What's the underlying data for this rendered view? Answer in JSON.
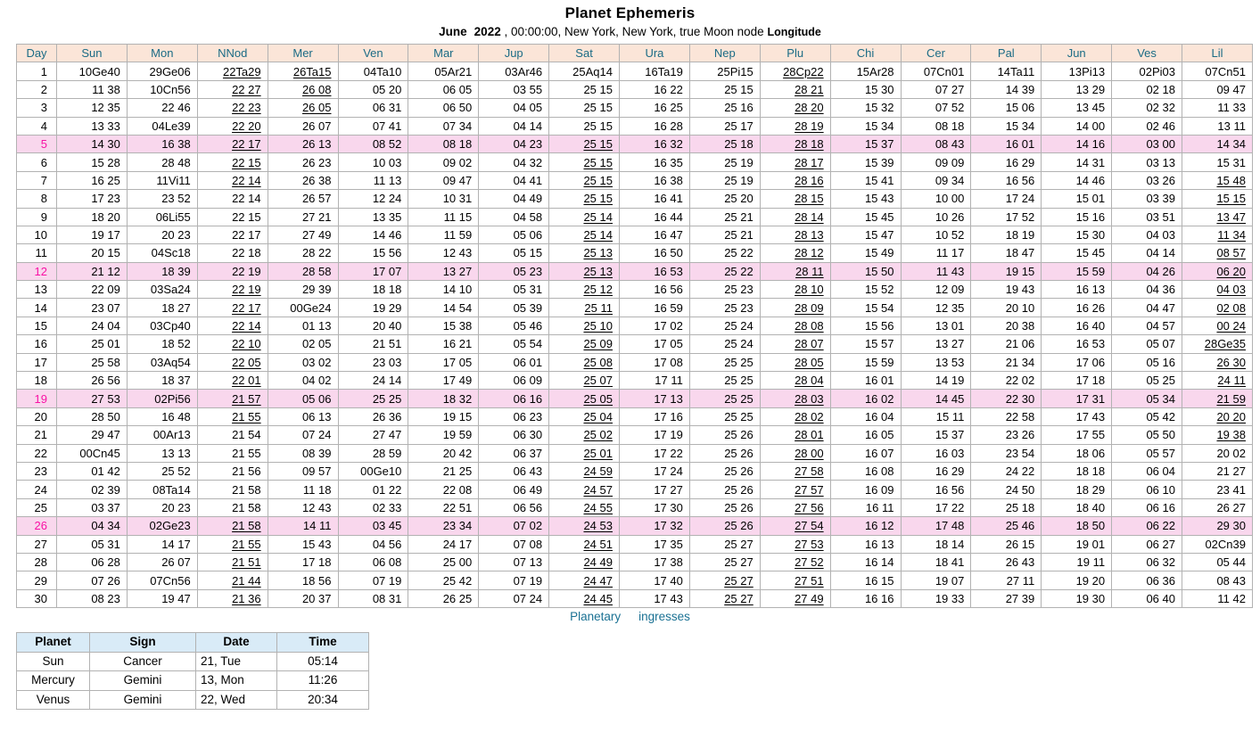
{
  "title": "Planet Ephemeris",
  "subtitle": {
    "month": "June",
    "year": "2022",
    "details": ", 00:00:00, New York, New York, true Moon node",
    "coordinate_type": "Longitude"
  },
  "colors": {
    "header_bg": "#fbe5d8",
    "header_text": "#1b6b85",
    "highlight_row_bg": "#f9d7ed",
    "highlight_day_text": "#f911a5",
    "grid_line": "#b2b2b2",
    "caption_text": "#1a7193",
    "ingresses_header_bg": "#d9ebf7"
  },
  "table": {
    "columns": [
      "Day",
      "Sun",
      "Mon",
      "NNod",
      "Mer",
      "Ven",
      "Mar",
      "Jup",
      "Sat",
      "Ura",
      "Nep",
      "Plu",
      "Chi",
      "Cer",
      "Pal",
      "Jun",
      "Ves",
      "Lil"
    ],
    "highlighted_days": [
      5,
      12,
      19,
      26
    ],
    "rows": [
      {
        "day": "1",
        "cells": [
          "10Ge40",
          "29Ge06",
          "22Ta29",
          "26Ta15",
          "04Ta10",
          "05Ar21",
          "03Ar46",
          "25Aq14",
          "16Ta19",
          "25Pi15",
          "28Cp22",
          "15Ar28",
          "07Cn01",
          "14Ta11",
          "13Pi13",
          "02Pi03",
          "07Cn51"
        ],
        "u": [
          2,
          3,
          10
        ]
      },
      {
        "day": "2",
        "cells": [
          "11 38",
          "10Cn56",
          "22 27",
          "26 08",
          "05 20",
          "06 05",
          "03 55",
          "25 15",
          "16 22",
          "25 15",
          "28 21",
          "15 30",
          "07 27",
          "14 39",
          "13 29",
          "02 18",
          "09 47"
        ],
        "u": [
          2,
          3,
          10
        ]
      },
      {
        "day": "3",
        "cells": [
          "12 35",
          "22 46",
          "22 23",
          "26 05",
          "06 31",
          "06 50",
          "04 05",
          "25 15",
          "16 25",
          "25 16",
          "28 20",
          "15 32",
          "07 52",
          "15 06",
          "13 45",
          "02 32",
          "11 33"
        ],
        "u": [
          2,
          3,
          10
        ]
      },
      {
        "day": "4",
        "cells": [
          "13 33",
          "04Le39",
          "22 20",
          "26 07",
          "07 41",
          "07 34",
          "04 14",
          "25 15",
          "16 28",
          "25 17",
          "28 19",
          "15 34",
          "08 18",
          "15 34",
          "14 00",
          "02 46",
          "13 11"
        ],
        "u": [
          2,
          10
        ]
      },
      {
        "day": "5",
        "cells": [
          "14 30",
          "16 38",
          "22 17",
          "26 13",
          "08 52",
          "08 18",
          "04 23",
          "25 15",
          "16 32",
          "25 18",
          "28 18",
          "15 37",
          "08 43",
          "16 01",
          "14 16",
          "03 00",
          "14 34"
        ],
        "u": [
          2,
          7,
          10
        ]
      },
      {
        "day": "6",
        "cells": [
          "15 28",
          "28 48",
          "22 15",
          "26 23",
          "10 03",
          "09 02",
          "04 32",
          "25 15",
          "16 35",
          "25 19",
          "28 17",
          "15 39",
          "09 09",
          "16 29",
          "14 31",
          "03 13",
          "15 31"
        ],
        "u": [
          2,
          7,
          10
        ]
      },
      {
        "day": "7",
        "cells": [
          "16 25",
          "11Vi11",
          "22 14",
          "26 38",
          "11 13",
          "09 47",
          "04 41",
          "25 15",
          "16 38",
          "25 19",
          "28 16",
          "15 41",
          "09 34",
          "16 56",
          "14 46",
          "03 26",
          "15 48"
        ],
        "u": [
          2,
          7,
          10,
          16
        ]
      },
      {
        "day": "8",
        "cells": [
          "17 23",
          "23 52",
          "22 14",
          "26 57",
          "12 24",
          "10 31",
          "04 49",
          "25 15",
          "16 41",
          "25 20",
          "28 15",
          "15 43",
          "10 00",
          "17 24",
          "15 01",
          "03 39",
          "15 15"
        ],
        "u": [
          7,
          10,
          16
        ]
      },
      {
        "day": "9",
        "cells": [
          "18 20",
          "06Li55",
          "22 15",
          "27 21",
          "13 35",
          "11 15",
          "04 58",
          "25 14",
          "16 44",
          "25 21",
          "28 14",
          "15 45",
          "10 26",
          "17 52",
          "15 16",
          "03 51",
          "13 47"
        ],
        "u": [
          7,
          10,
          16
        ]
      },
      {
        "day": "10",
        "cells": [
          "19 17",
          "20 23",
          "22 17",
          "27 49",
          "14 46",
          "11 59",
          "05 06",
          "25 14",
          "16 47",
          "25 21",
          "28 13",
          "15 47",
          "10 52",
          "18 19",
          "15 30",
          "04 03",
          "11 34"
        ],
        "u": [
          7,
          10,
          16
        ]
      },
      {
        "day": "11",
        "cells": [
          "20 15",
          "04Sc18",
          "22 18",
          "28 22",
          "15 56",
          "12 43",
          "05 15",
          "25 13",
          "16 50",
          "25 22",
          "28 12",
          "15 49",
          "11 17",
          "18 47",
          "15 45",
          "04 14",
          "08 57"
        ],
        "u": [
          7,
          10,
          16
        ]
      },
      {
        "day": "12",
        "cells": [
          "21 12",
          "18 39",
          "22 19",
          "28 58",
          "17 07",
          "13 27",
          "05 23",
          "25 13",
          "16 53",
          "25 22",
          "28 11",
          "15 50",
          "11 43",
          "19 15",
          "15 59",
          "04 26",
          "06 20"
        ],
        "u": [
          7,
          10,
          16
        ]
      },
      {
        "day": "13",
        "cells": [
          "22 09",
          "03Sa24",
          "22 19",
          "29 39",
          "18 18",
          "14 10",
          "05 31",
          "25 12",
          "16 56",
          "25 23",
          "28 10",
          "15 52",
          "12 09",
          "19 43",
          "16 13",
          "04 36",
          "04 03"
        ],
        "u": [
          2,
          7,
          10,
          16
        ]
      },
      {
        "day": "14",
        "cells": [
          "23 07",
          "18 27",
          "22 17",
          "00Ge24",
          "19 29",
          "14 54",
          "05 39",
          "25 11",
          "16 59",
          "25 23",
          "28 09",
          "15 54",
          "12 35",
          "20 10",
          "16 26",
          "04 47",
          "02 08"
        ],
        "u": [
          2,
          7,
          10,
          16
        ]
      },
      {
        "day": "15",
        "cells": [
          "24 04",
          "03Cp40",
          "22 14",
          "01 13",
          "20 40",
          "15 38",
          "05 46",
          "25 10",
          "17 02",
          "25 24",
          "28 08",
          "15 56",
          "13 01",
          "20 38",
          "16 40",
          "04 57",
          "00 24"
        ],
        "u": [
          2,
          7,
          10,
          16
        ]
      },
      {
        "day": "16",
        "cells": [
          "25 01",
          "18 52",
          "22 10",
          "02 05",
          "21 51",
          "16 21",
          "05 54",
          "25 09",
          "17 05",
          "25 24",
          "28 07",
          "15 57",
          "13 27",
          "21 06",
          "16 53",
          "05 07",
          "28Ge35"
        ],
        "u": [
          2,
          7,
          10,
          16
        ]
      },
      {
        "day": "17",
        "cells": [
          "25 58",
          "03Aq54",
          "22 05",
          "03 02",
          "23 03",
          "17 05",
          "06 01",
          "25 08",
          "17 08",
          "25 25",
          "28 05",
          "15 59",
          "13 53",
          "21 34",
          "17 06",
          "05 16",
          "26 30"
        ],
        "u": [
          2,
          7,
          10,
          16
        ]
      },
      {
        "day": "18",
        "cells": [
          "26 56",
          "18 37",
          "22 01",
          "04 02",
          "24 14",
          "17 49",
          "06 09",
          "25 07",
          "17 11",
          "25 25",
          "28 04",
          "16 01",
          "14 19",
          "22 02",
          "17 18",
          "05 25",
          "24 11"
        ],
        "u": [
          2,
          7,
          10,
          16
        ]
      },
      {
        "day": "19",
        "cells": [
          "27 53",
          "02Pi56",
          "21 57",
          "05 06",
          "25 25",
          "18 32",
          "06 16",
          "25 05",
          "17 13",
          "25 25",
          "28 03",
          "16 02",
          "14 45",
          "22 30",
          "17 31",
          "05 34",
          "21 59"
        ],
        "u": [
          2,
          7,
          10,
          16
        ]
      },
      {
        "day": "20",
        "cells": [
          "28 50",
          "16 48",
          "21 55",
          "06 13",
          "26 36",
          "19 15",
          "06 23",
          "25 04",
          "17 16",
          "25 25",
          "28 02",
          "16 04",
          "15 11",
          "22 58",
          "17 43",
          "05 42",
          "20 20"
        ],
        "u": [
          2,
          7,
          10,
          16
        ]
      },
      {
        "day": "21",
        "cells": [
          "29 47",
          "00Ar13",
          "21 54",
          "07 24",
          "27 47",
          "19 59",
          "06 30",
          "25 02",
          "17 19",
          "25 26",
          "28 01",
          "16 05",
          "15 37",
          "23 26",
          "17 55",
          "05 50",
          "19 38"
        ],
        "u": [
          7,
          10,
          16
        ]
      },
      {
        "day": "22",
        "cells": [
          "00Cn45",
          "13 13",
          "21 55",
          "08 39",
          "28 59",
          "20 42",
          "06 37",
          "25 01",
          "17 22",
          "25 26",
          "28 00",
          "16 07",
          "16 03",
          "23 54",
          "18 06",
          "05 57",
          "20 02"
        ],
        "u": [
          7,
          10
        ]
      },
      {
        "day": "23",
        "cells": [
          "01 42",
          "25 52",
          "21 56",
          "09 57",
          "00Ge10",
          "21 25",
          "06 43",
          "24 59",
          "17 24",
          "25 26",
          "27 58",
          "16 08",
          "16 29",
          "24 22",
          "18 18",
          "06 04",
          "21 27"
        ],
        "u": [
          7,
          10
        ]
      },
      {
        "day": "24",
        "cells": [
          "02 39",
          "08Ta14",
          "21 58",
          "11 18",
          "01 22",
          "22 08",
          "06 49",
          "24 57",
          "17 27",
          "25 26",
          "27 57",
          "16 09",
          "16 56",
          "24 50",
          "18 29",
          "06 10",
          "23 41"
        ],
        "u": [
          7,
          10
        ]
      },
      {
        "day": "25",
        "cells": [
          "03 37",
          "20 23",
          "21 58",
          "12 43",
          "02 33",
          "22 51",
          "06 56",
          "24 55",
          "17 30",
          "25 26",
          "27 56",
          "16 11",
          "17 22",
          "25 18",
          "18 40",
          "06 16",
          "26 27"
        ],
        "u": [
          7,
          10
        ]
      },
      {
        "day": "26",
        "cells": [
          "04 34",
          "02Ge23",
          "21 58",
          "14 11",
          "03 45",
          "23 34",
          "07 02",
          "24 53",
          "17 32",
          "25 26",
          "27 54",
          "16 12",
          "17 48",
          "25 46",
          "18 50",
          "06 22",
          "29 30"
        ],
        "u": [
          2,
          7,
          10
        ]
      },
      {
        "day": "27",
        "cells": [
          "05 31",
          "14 17",
          "21 55",
          "15 43",
          "04 56",
          "24 17",
          "07 08",
          "24 51",
          "17 35",
          "25 27",
          "27 53",
          "16 13",
          "18 14",
          "26 15",
          "19 01",
          "06 27",
          "02Cn39"
        ],
        "u": [
          2,
          7,
          10
        ]
      },
      {
        "day": "28",
        "cells": [
          "06 28",
          "26 07",
          "21 51",
          "17 18",
          "06 08",
          "25 00",
          "07 13",
          "24 49",
          "17 38",
          "25 27",
          "27 52",
          "16 14",
          "18 41",
          "26 43",
          "19 11",
          "06 32",
          "05 44"
        ],
        "u": [
          2,
          7,
          10
        ]
      },
      {
        "day": "29",
        "cells": [
          "07 26",
          "07Cn56",
          "21 44",
          "18 56",
          "07 19",
          "25 42",
          "07 19",
          "24 47",
          "17 40",
          "25 27",
          "27 51",
          "16 15",
          "19 07",
          "27 11",
          "19 20",
          "06 36",
          "08 43"
        ],
        "u": [
          2,
          7,
          9,
          10
        ]
      },
      {
        "day": "30",
        "cells": [
          "08 23",
          "19 47",
          "21 36",
          "20 37",
          "08 31",
          "26 25",
          "07 24",
          "24 45",
          "17 43",
          "25 27",
          "27 49",
          "16 16",
          "19 33",
          "27 39",
          "19 30",
          "06 40",
          "11 42"
        ],
        "u": [
          2,
          7,
          9,
          10
        ]
      }
    ]
  },
  "ingresses_caption": {
    "word1": "Planetary",
    "word2": "ingresses"
  },
  "ingresses_table": {
    "columns": [
      "Planet",
      "Sign",
      "Date",
      "Time"
    ],
    "rows": [
      [
        "Sun",
        "Cancer",
        "21, Tue",
        "05:14"
      ],
      [
        "Mercury",
        "Gemini",
        "13, Mon",
        "11:26"
      ],
      [
        "Venus",
        "Gemini",
        "22, Wed",
        "20:34"
      ]
    ]
  }
}
